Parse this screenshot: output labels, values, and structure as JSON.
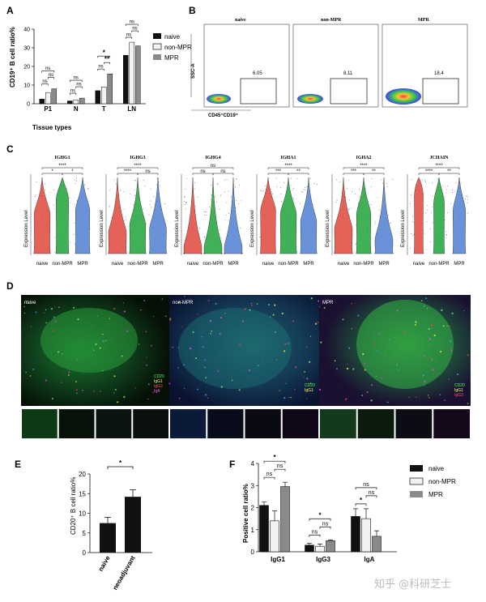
{
  "panel_letters": [
    "A",
    "B",
    "C",
    "D",
    "E",
    "F"
  ],
  "colors": {
    "naive": "#111111",
    "non_mpr": "#f2f2f2",
    "mpr": "#8a8a8a",
    "violin_red": "#e0473c",
    "violin_green": "#1fa33a",
    "violin_blue": "#4f7fd1"
  },
  "panelA": {
    "ylabel": "CD19⁺ B cell ratio%",
    "xlabel": "Tissue types",
    "legend": [
      "naive",
      "non-MPR",
      "MPR"
    ],
    "chart_data": {
      "type": "bar",
      "categories": [
        "P1",
        "N",
        "T",
        "LN"
      ],
      "ylim": [
        0,
        40
      ],
      "yticks": [
        0,
        10,
        20,
        30,
        40
      ],
      "series": [
        {
          "name": "naive",
          "values": [
            2.5,
            1.5,
            7,
            26
          ]
        },
        {
          "name": "non-MPR",
          "values": [
            6,
            2,
            9,
            33
          ]
        },
        {
          "name": "MPR",
          "values": [
            8,
            3,
            16,
            31
          ]
        }
      ],
      "annotations": [
        "ns",
        "ns",
        "ns",
        "ns",
        "ns",
        "ns",
        "ns",
        "**",
        "*",
        "ns",
        "ns",
        "ns"
      ]
    }
  },
  "panelB": {
    "titles": [
      "naive",
      "non-MPR",
      "MPR"
    ],
    "gate_values": [
      "6.05",
      "8.11",
      "18.4"
    ],
    "ylabel": "SSC-A",
    "xlabel": "CD45⁺CD19⁺"
  },
  "panelC": {
    "genes": [
      "IGHG1",
      "IGHG3",
      "IGHG4",
      "IGHA1",
      "IGHA2",
      "JCHAIN"
    ],
    "ylabel": "Expression Level",
    "groups": [
      "naive",
      "non-MPR",
      "MPR"
    ],
    "sig_top": [
      "****",
      "****",
      "ns",
      "****",
      "****",
      "****"
    ],
    "sig_left": [
      "*",
      "****",
      "ns",
      "***",
      "***",
      "****"
    ],
    "sig_right": [
      "*",
      "ns",
      "ns",
      "**",
      "**",
      "**"
    ]
  },
  "panelD": {
    "titles": [
      "naive",
      "non-MPR",
      "MPR"
    ],
    "channel_legend": [
      "CD20",
      "IgG1",
      "IgG3",
      "IgA"
    ]
  },
  "panelE": {
    "ylabel": "CD20⁺ B cell ratio%",
    "sig": "*",
    "chart_data": {
      "type": "bar",
      "categories": [
        "naive",
        "neoadjuvant"
      ],
      "values": [
        7.5,
        14.2
      ],
      "errors": [
        1.5,
        1.8
      ],
      "ylim": [
        0,
        20
      ],
      "yticks": [
        0,
        5,
        10,
        15,
        20
      ]
    }
  },
  "panelF": {
    "ylabel": "Positive cell ratio%",
    "legend": [
      "naive",
      "non-MPR",
      "MPR"
    ],
    "chart_data": {
      "type": "bar",
      "categories": [
        "IgG1",
        "IgG3",
        "IgA"
      ],
      "ylim": [
        0,
        4
      ],
      "yticks": [
        0,
        1,
        2,
        3,
        4
      ],
      "series": [
        {
          "name": "naive",
          "values": [
            2.1,
            0.3,
            1.6
          ],
          "errors": [
            0.15,
            0.08,
            0.35
          ]
        },
        {
          "name": "non-MPR",
          "values": [
            1.4,
            0.25,
            1.5
          ],
          "errors": [
            0.45,
            0.1,
            0.45
          ]
        },
        {
          "name": "MPR",
          "values": [
            2.95,
            0.5,
            0.7
          ],
          "errors": [
            0.2,
            0.04,
            0.25
          ]
        }
      ],
      "annotations": [
        "ns",
        "ns",
        "*",
        "ns",
        "ns",
        "*",
        "*",
        "ns",
        "ns"
      ]
    }
  },
  "watermark": "知乎 @科研芝士"
}
